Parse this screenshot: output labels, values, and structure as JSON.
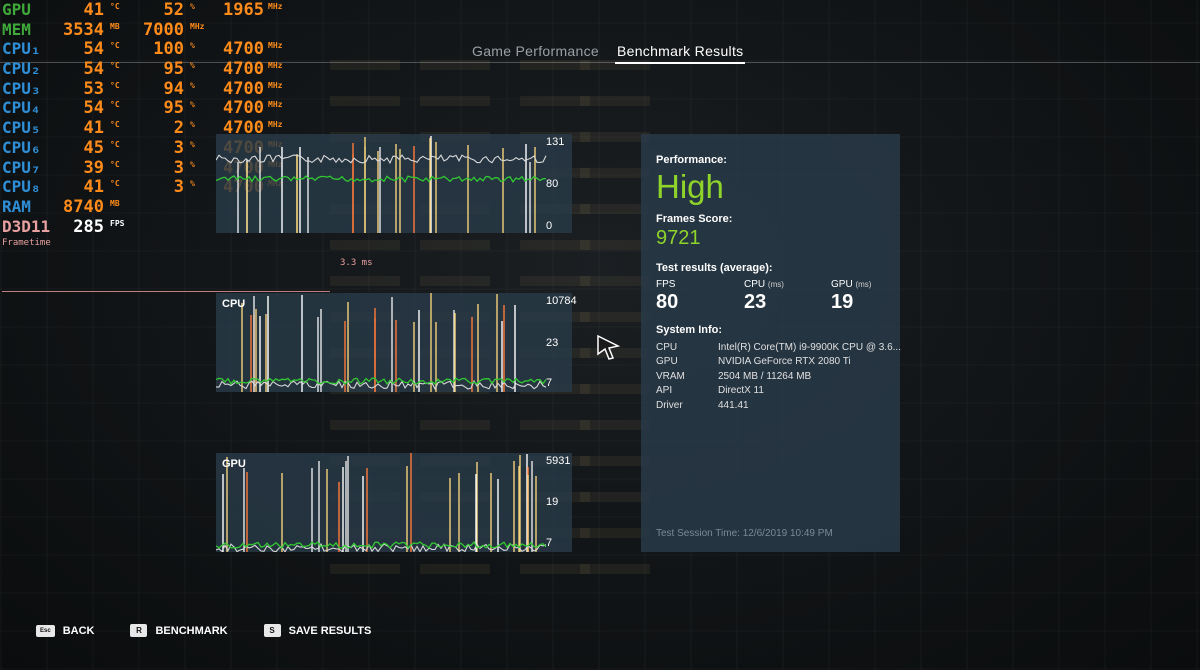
{
  "tabs": [
    {
      "label": "Game Performance",
      "active": false
    },
    {
      "label": "Benchmark Results",
      "active": true
    }
  ],
  "osd": {
    "rows": [
      {
        "label": "GPU",
        "color": "green",
        "v1": "41",
        "u1": "°C",
        "v2": "52",
        "u2": "%",
        "v3": "1965",
        "u3": "MHz"
      },
      {
        "label": "MEM",
        "color": "green",
        "v1": "3534",
        "u1": "MB",
        "v2": "7000",
        "u2": "MHz",
        "v3": "",
        "u3": ""
      },
      {
        "label": "CPU₁",
        "color": "blue",
        "v1": "54",
        "u1": "°C",
        "v2": "100",
        "u2": "%",
        "v3": "4700",
        "u3": "MHz"
      },
      {
        "label": "CPU₂",
        "color": "blue",
        "v1": "54",
        "u1": "°C",
        "v2": "95",
        "u2": "%",
        "v3": "4700",
        "u3": "MHz"
      },
      {
        "label": "CPU₃",
        "color": "blue",
        "v1": "53",
        "u1": "°C",
        "v2": "94",
        "u2": "%",
        "v3": "4700",
        "u3": "MHz"
      },
      {
        "label": "CPU₄",
        "color": "blue",
        "v1": "54",
        "u1": "°C",
        "v2": "95",
        "u2": "%",
        "v3": "4700",
        "u3": "MHz"
      },
      {
        "label": "CPU₅",
        "color": "blue",
        "v1": "41",
        "u1": "°C",
        "v2": "2",
        "u2": "%",
        "v3": "4700",
        "u3": "MHz"
      },
      {
        "label": "CPU₆",
        "color": "blue",
        "v1": "45",
        "u1": "°C",
        "v2": "3",
        "u2": "%",
        "v3": "4700",
        "u3": "MHz"
      },
      {
        "label": "CPU₇",
        "color": "blue",
        "v1": "39",
        "u1": "°C",
        "v2": "3",
        "u2": "%",
        "v3": "4700",
        "u3": "MHz"
      },
      {
        "label": "CPU₈",
        "color": "blue",
        "v1": "41",
        "u1": "°C",
        "v2": "3",
        "u2": "%",
        "v3": "4700",
        "u3": "MHz"
      },
      {
        "label": "RAM",
        "color": "blue",
        "v1": "8740",
        "u1": "MB",
        "v2": "",
        "u2": "",
        "v3": "",
        "u3": ""
      },
      {
        "label": "D3D11",
        "color": "pink",
        "v1": "285",
        "u1": "FPS",
        "v2": "",
        "u2": "",
        "v3": "",
        "u3": ""
      }
    ],
    "frametime_label": "Frametime",
    "frametime_value": "3.3 ms"
  },
  "graphs": {
    "fps": {
      "title": "",
      "labels": [
        "131",
        "80",
        "0"
      ]
    },
    "cpu": {
      "title": "CPU",
      "labels": [
        "10784",
        "23",
        "7"
      ]
    },
    "gpu": {
      "title": "GPU",
      "labels": [
        "5931",
        "19",
        "7"
      ]
    }
  },
  "results": {
    "performance_label": "Performance:",
    "performance_value": "High",
    "score_label": "Frames Score:",
    "score_value": "9721",
    "test_label": "Test results (average):",
    "stats": [
      {
        "label": "FPS",
        "unit": "",
        "value": "80"
      },
      {
        "label": "CPU",
        "unit": "(ms)",
        "value": "23"
      },
      {
        "label": "GPU",
        "unit": "(ms)",
        "value": "19"
      }
    ],
    "system_label": "System Info:",
    "system": [
      {
        "key": "CPU",
        "value": "Intel(R) Core(TM) i9-9900K CPU @ 3.6..."
      },
      {
        "key": "GPU",
        "value": "NVIDIA GeForce RTX 2080 Ti"
      },
      {
        "key": "VRAM",
        "value": "2504 MB / 11264 MB"
      },
      {
        "key": "API",
        "value": "DirectX 11"
      },
      {
        "key": "Driver",
        "value": "441.41"
      }
    ],
    "session": "Test Session Time: 12/6/2019 10:49 PM"
  },
  "footer": [
    {
      "key": "Esc",
      "label": "BACK"
    },
    {
      "key": "R",
      "label": "BENCHMARK"
    },
    {
      "key": "S",
      "label": "SAVE RESULTS"
    }
  ],
  "colors": {
    "accent": "#8fd42a",
    "osd_orange": "#ff8c1a",
    "osd_green": "#3ea83a",
    "osd_blue": "#2f8fd6",
    "osd_pink": "#e8a0a0"
  }
}
